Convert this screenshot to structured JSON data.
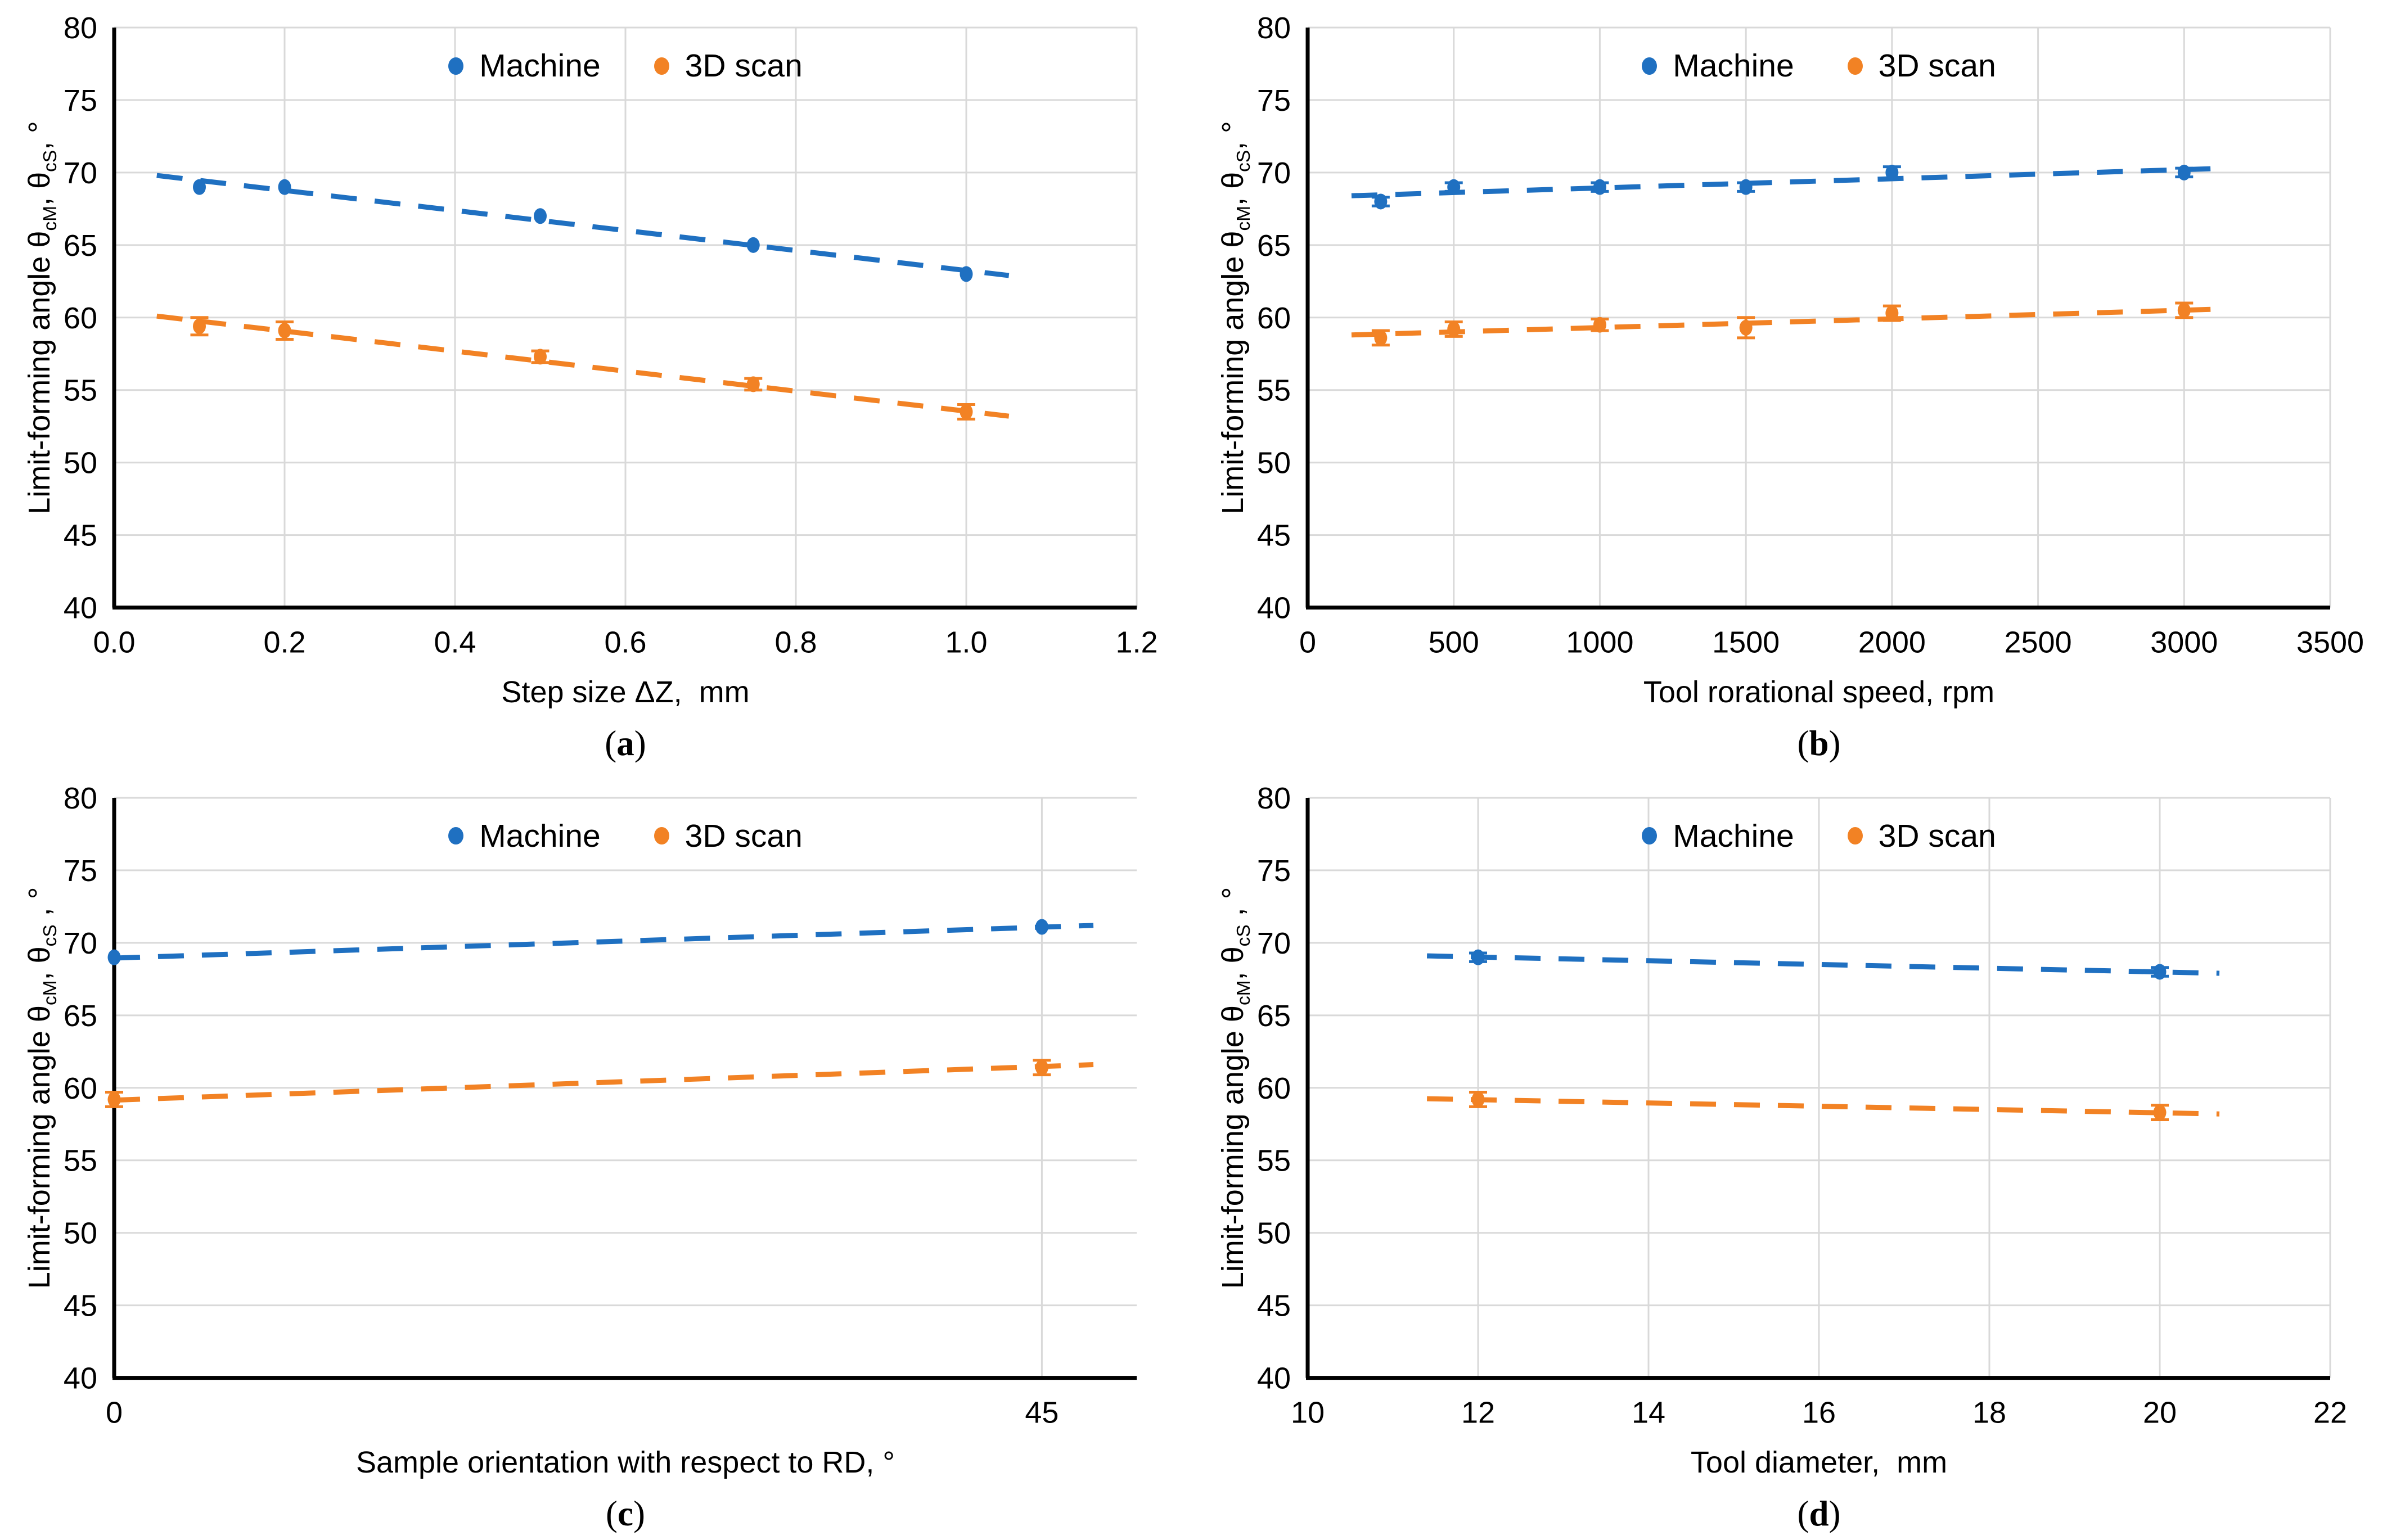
{
  "colors": {
    "machine": "#1F70C1",
    "scan": "#F28224",
    "grid": "#D9D9D9",
    "axis": "#000000",
    "text": "#000000"
  },
  "chart_data": [
    {
      "type": "scatter",
      "panel_label_parts": {
        "pre": "(",
        "letter": "a",
        "post": ")"
      },
      "xlabel": "Step size ΔZ,  mm",
      "ylabel_segments": [
        [
          "Limit-forming angle θ",
          false
        ],
        [
          "cM",
          true
        ],
        [
          ",  θ",
          false
        ],
        [
          "cS",
          true
        ],
        [
          ", °",
          false
        ]
      ],
      "xlim": [
        0,
        1.2
      ],
      "ylim": [
        40,
        80
      ],
      "xticks": [
        {
          "v": 0,
          "l": "0.0"
        },
        {
          "v": 0.2,
          "l": "0.2"
        },
        {
          "v": 0.4,
          "l": "0.4"
        },
        {
          "v": 0.6,
          "l": "0.6"
        },
        {
          "v": 0.8,
          "l": "0.8"
        },
        {
          "v": 1.0,
          "l": "1.0"
        },
        {
          "v": 1.2,
          "l": "1.2"
        }
      ],
      "yticks": [
        {
          "v": 40,
          "l": "40"
        },
        {
          "v": 45,
          "l": "45"
        },
        {
          "v": 50,
          "l": "50"
        },
        {
          "v": 55,
          "l": "55"
        },
        {
          "v": 60,
          "l": "60"
        },
        {
          "v": 65,
          "l": "65"
        },
        {
          "v": 70,
          "l": "70"
        },
        {
          "v": 75,
          "l": "75"
        },
        {
          "v": 80,
          "l": "80"
        }
      ],
      "x_gridlines": [
        0.2,
        0.4,
        0.6,
        0.8,
        1.0,
        1.2
      ],
      "y_gridlines": [
        45,
        50,
        55,
        60,
        65,
        70,
        75,
        80
      ],
      "grid": true,
      "legend_position": "top-center-inside",
      "series": [
        {
          "name": "Machine",
          "color_key": "machine",
          "x": [
            0.1,
            0.2,
            0.5,
            0.75,
            1.0
          ],
          "y": [
            69,
            69,
            67,
            65,
            63
          ],
          "err": [
            0,
            0,
            0,
            0,
            0
          ],
          "trend": {
            "x": [
              0.05,
              1.05
            ],
            "y": [
              69.8,
              62.9
            ]
          }
        },
        {
          "name": "3D scan",
          "color_key": "scan",
          "x": [
            0.1,
            0.2,
            0.5,
            0.75,
            1.0
          ],
          "y": [
            59.4,
            59.1,
            57.3,
            55.4,
            53.5
          ],
          "err": [
            0.6,
            0.6,
            0.4,
            0.4,
            0.5
          ],
          "trend": {
            "x": [
              0.05,
              1.05
            ],
            "y": [
              60.1,
              53.2
            ]
          }
        }
      ]
    },
    {
      "type": "scatter",
      "panel_label_parts": {
        "pre": "(",
        "letter": "b",
        "post": ")"
      },
      "xlabel": "Tool rorational speed, rpm",
      "ylabel_segments": [
        [
          "Limit-forming angle θ",
          false
        ],
        [
          "cM",
          true
        ],
        [
          ",  θ",
          false
        ],
        [
          "cS",
          true
        ],
        [
          ", °",
          false
        ]
      ],
      "xlim": [
        0,
        3500
      ],
      "ylim": [
        40,
        80
      ],
      "xticks": [
        {
          "v": 0,
          "l": "0"
        },
        {
          "v": 500,
          "l": "500"
        },
        {
          "v": 1000,
          "l": "1000"
        },
        {
          "v": 1500,
          "l": "1500"
        },
        {
          "v": 2000,
          "l": "2000"
        },
        {
          "v": 2500,
          "l": "2500"
        },
        {
          "v": 3000,
          "l": "3000"
        },
        {
          "v": 3500,
          "l": "3500"
        }
      ],
      "yticks": [
        {
          "v": 40,
          "l": "40"
        },
        {
          "v": 45,
          "l": "45"
        },
        {
          "v": 50,
          "l": "50"
        },
        {
          "v": 55,
          "l": "55"
        },
        {
          "v": 60,
          "l": "60"
        },
        {
          "v": 65,
          "l": "65"
        },
        {
          "v": 70,
          "l": "70"
        },
        {
          "v": 75,
          "l": "75"
        },
        {
          "v": 80,
          "l": "80"
        }
      ],
      "x_gridlines": [
        500,
        1000,
        1500,
        2000,
        2500,
        3000,
        3500
      ],
      "y_gridlines": [
        45,
        50,
        55,
        60,
        65,
        70,
        75,
        80
      ],
      "grid": true,
      "legend_position": "top-center-inside",
      "series": [
        {
          "name": "Machine",
          "color_key": "machine",
          "x": [
            250,
            500,
            1000,
            1500,
            2000,
            3000
          ],
          "y": [
            68,
            69,
            69,
            69,
            70,
            70
          ],
          "err": [
            0.3,
            0.3,
            0.3,
            0.3,
            0.4,
            0.3
          ],
          "trend": {
            "x": [
              150,
              3150
            ],
            "y": [
              68.4,
              70.3
            ]
          }
        },
        {
          "name": "3D scan",
          "color_key": "scan",
          "x": [
            250,
            500,
            1000,
            1500,
            2000,
            3000
          ],
          "y": [
            58.6,
            59.2,
            59.5,
            59.3,
            60.3,
            60.5
          ],
          "err": [
            0.5,
            0.5,
            0.4,
            0.7,
            0.5,
            0.5
          ],
          "trend": {
            "x": [
              150,
              3150
            ],
            "y": [
              58.8,
              60.6
            ]
          }
        }
      ]
    },
    {
      "type": "scatter",
      "panel_label_parts": {
        "pre": "(",
        "letter": "c",
        "post": ")"
      },
      "xlabel": "Sample orientation with respect to RD, °",
      "ylabel_segments": [
        [
          "Limit-forming angle θ",
          false
        ],
        [
          "cM",
          true
        ],
        [
          ",  θ",
          false
        ],
        [
          "cS",
          true
        ],
        [
          " , °",
          false
        ]
      ],
      "xlim": [
        0,
        49.6
      ],
      "ylim": [
        40,
        80
      ],
      "xticks": [
        {
          "v": 0,
          "l": "0"
        },
        {
          "v": 45,
          "l": "45"
        }
      ],
      "yticks": [
        {
          "v": 40,
          "l": "40"
        },
        {
          "v": 45,
          "l": "45"
        },
        {
          "v": 50,
          "l": "50"
        },
        {
          "v": 55,
          "l": "55"
        },
        {
          "v": 60,
          "l": "60"
        },
        {
          "v": 65,
          "l": "65"
        },
        {
          "v": 70,
          "l": "70"
        },
        {
          "v": 75,
          "l": "75"
        },
        {
          "v": 80,
          "l": "80"
        }
      ],
      "x_gridlines": [
        45
      ],
      "y_gridlines": [
        45,
        50,
        55,
        60,
        65,
        70,
        75,
        80
      ],
      "grid": true,
      "legend_position": "top-center-inside",
      "series": [
        {
          "name": "Machine",
          "color_key": "machine",
          "x": [
            0,
            45
          ],
          "y": [
            69,
            71.1
          ],
          "err": [
            0,
            0
          ],
          "trend": {
            "x": [
              0,
              47.5
            ],
            "y": [
              68.95,
              71.2
            ]
          }
        },
        {
          "name": "3D scan",
          "color_key": "scan",
          "x": [
            0,
            45
          ],
          "y": [
            59.2,
            61.4
          ],
          "err": [
            0.5,
            0.5
          ],
          "trend": {
            "x": [
              0,
              47.5
            ],
            "y": [
              59.15,
              61.6
            ]
          }
        }
      ]
    },
    {
      "type": "scatter",
      "panel_label_parts": {
        "pre": "(",
        "letter": "d",
        "post": ")"
      },
      "xlabel": "Tool diameter,  mm",
      "ylabel_segments": [
        [
          "Limit-forming angle θ",
          false
        ],
        [
          "cM",
          true
        ],
        [
          ",  θ",
          false
        ],
        [
          "cS",
          true
        ],
        [
          " , °",
          false
        ]
      ],
      "xlim": [
        10,
        22
      ],
      "ylim": [
        40,
        80
      ],
      "xticks": [
        {
          "v": 10,
          "l": "10"
        },
        {
          "v": 12,
          "l": "12"
        },
        {
          "v": 14,
          "l": "14"
        },
        {
          "v": 16,
          "l": "16"
        },
        {
          "v": 18,
          "l": "18"
        },
        {
          "v": 20,
          "l": "20"
        },
        {
          "v": 22,
          "l": "22"
        }
      ],
      "yticks": [
        {
          "v": 40,
          "l": "40"
        },
        {
          "v": 45,
          "l": "45"
        },
        {
          "v": 50,
          "l": "50"
        },
        {
          "v": 55,
          "l": "55"
        },
        {
          "v": 60,
          "l": "60"
        },
        {
          "v": 65,
          "l": "65"
        },
        {
          "v": 70,
          "l": "70"
        },
        {
          "v": 75,
          "l": "75"
        },
        {
          "v": 80,
          "l": "80"
        }
      ],
      "x_gridlines": [
        12,
        14,
        16,
        18,
        20,
        22
      ],
      "y_gridlines": [
        45,
        50,
        55,
        60,
        65,
        70,
        75,
        80
      ],
      "grid": true,
      "legend_position": "top-center-inside",
      "series": [
        {
          "name": "Machine",
          "color_key": "machine",
          "x": [
            12,
            20
          ],
          "y": [
            69,
            68
          ],
          "err": [
            0.3,
            0.3
          ],
          "trend": {
            "x": [
              11.4,
              20.7
            ],
            "y": [
              69.1,
              67.9
            ]
          }
        },
        {
          "name": "3D scan",
          "color_key": "scan",
          "x": [
            12,
            20
          ],
          "y": [
            59.2,
            58.3
          ],
          "err": [
            0.5,
            0.5
          ],
          "trend": {
            "x": [
              11.4,
              20.7
            ],
            "y": [
              59.25,
              58.2
            ]
          }
        }
      ]
    }
  ]
}
